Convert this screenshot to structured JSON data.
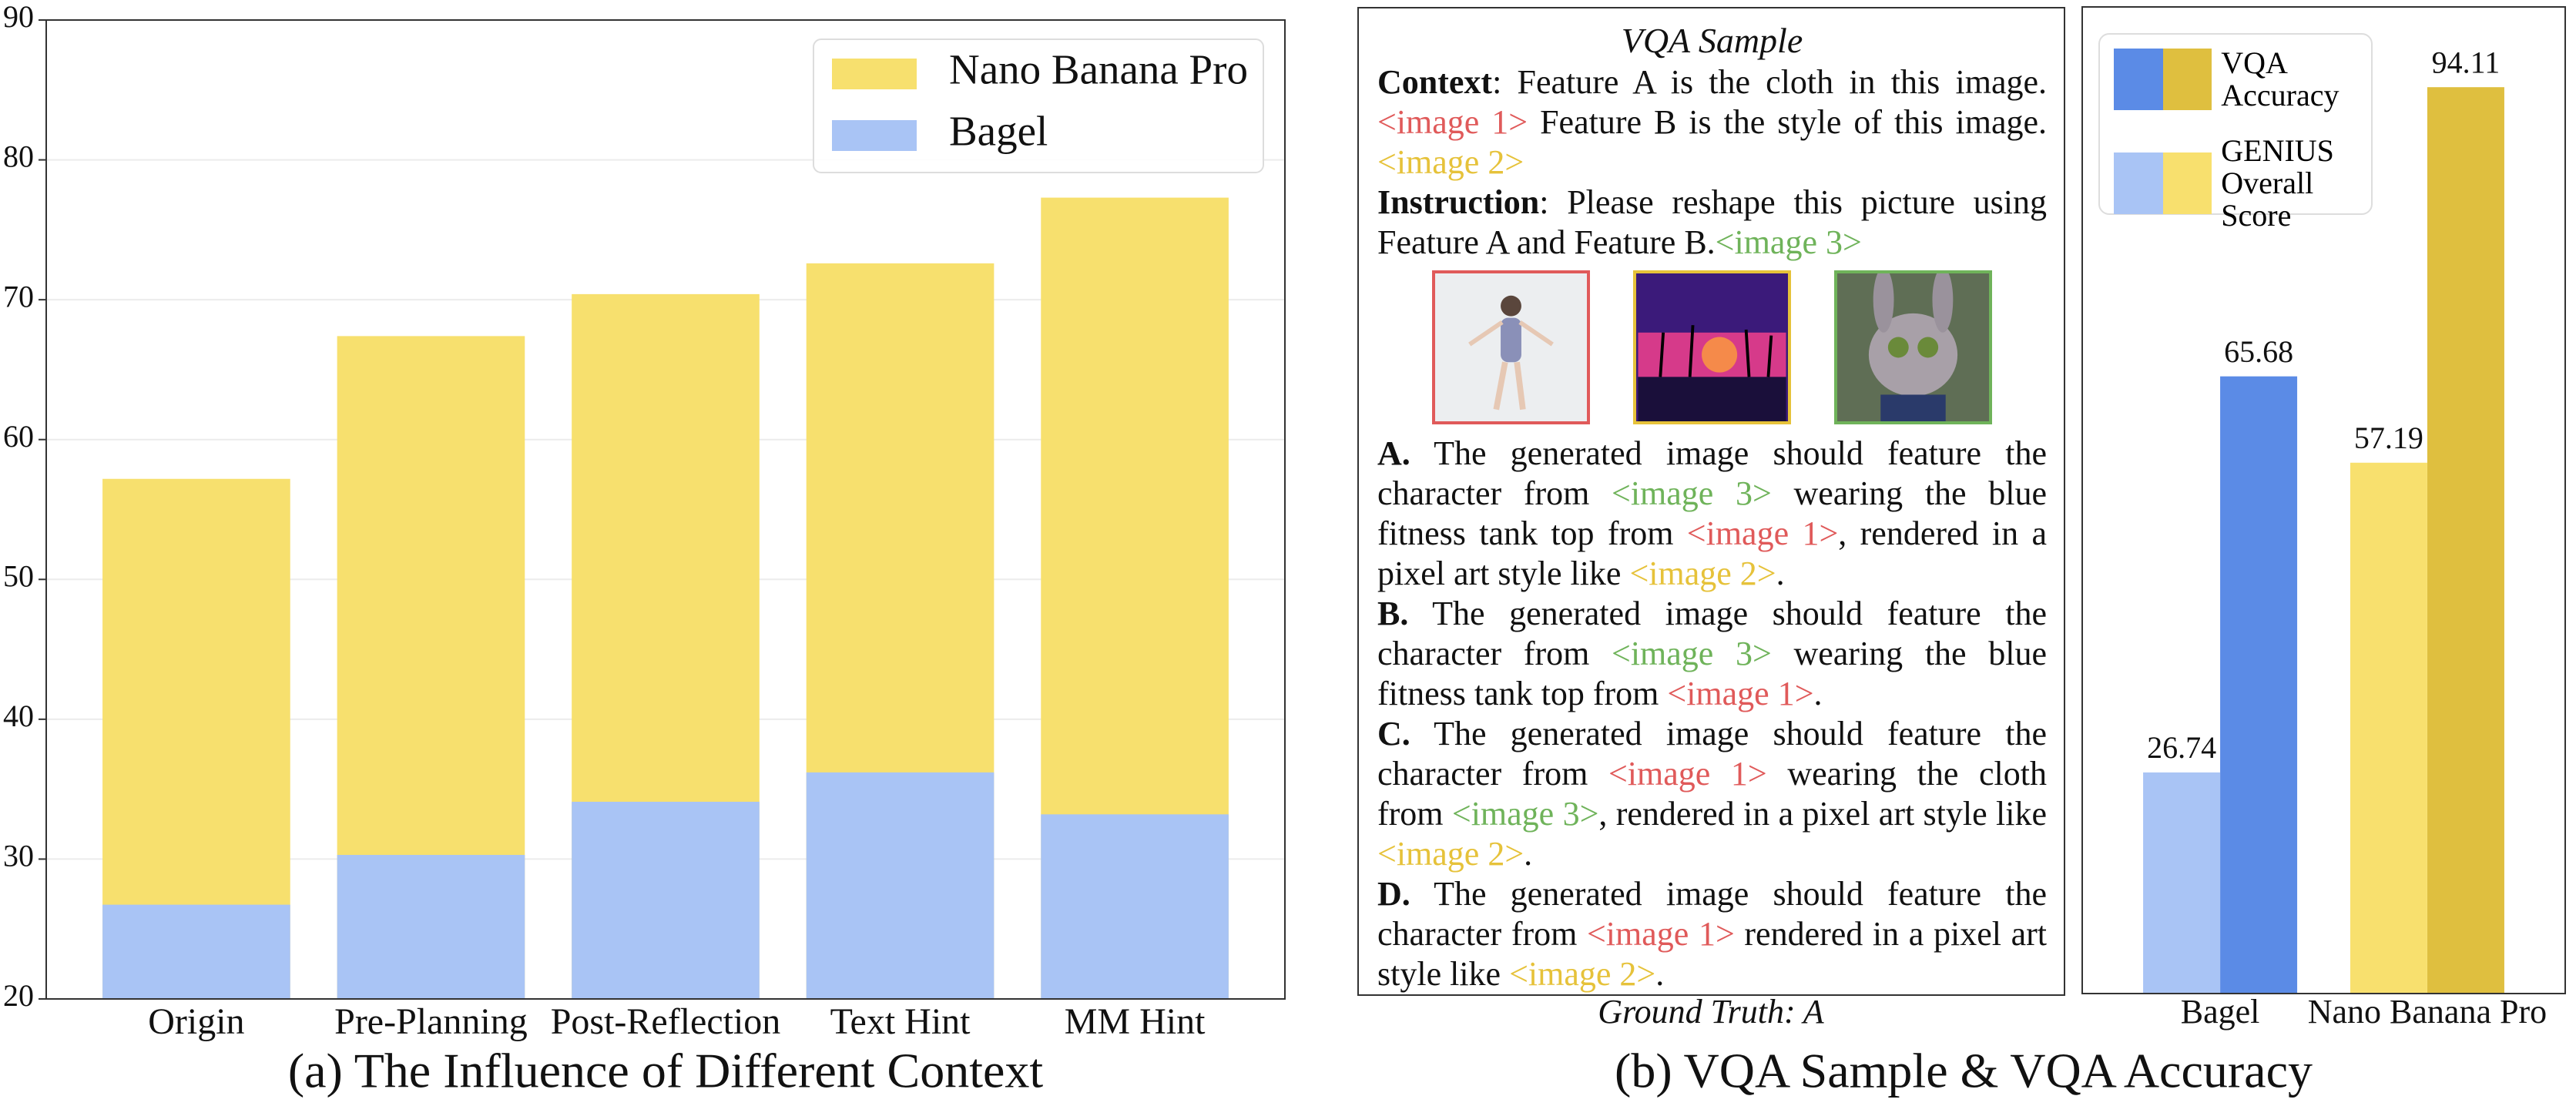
{
  "chart_data": [
    {
      "type": "bar",
      "title": "(a) The Influence of Different Context",
      "categories": [
        "Origin",
        "Pre-Planning",
        "Post-Reflection",
        "Text Hint",
        "MM Hint"
      ],
      "series": [
        {
          "name": "Nano Banana Pro",
          "color": "#f7e06e",
          "values": [
            57.19,
            67.4,
            70.4,
            72.6,
            77.3
          ]
        },
        {
          "name": "Bagel",
          "color": "#a9c4f5",
          "values": [
            26.74,
            30.3,
            34.1,
            36.2,
            33.2
          ]
        }
      ],
      "ylim": [
        20,
        90
      ],
      "yticks": [
        20,
        30,
        40,
        50,
        60,
        70,
        80,
        90
      ],
      "grid": true,
      "legend": "upper right"
    },
    {
      "type": "grouped_bar",
      "categories": [
        "Bagel",
        "Nano Banana Pro"
      ],
      "series": [
        {
          "name": "VQA Accuracy",
          "colors": [
            "#5b8be6",
            "#dfbf3f"
          ],
          "values": [
            65.68,
            94.11
          ]
        },
        {
          "name": "GENIUS Overall Score",
          "colors": [
            "#a9c4f5",
            "#f8e06e"
          ],
          "values": [
            26.74,
            57.19
          ]
        }
      ],
      "ylim": [
        5,
        102
      ],
      "grid": false,
      "legend": "upper left"
    }
  ],
  "vqa_sample": {
    "title": "VQA Sample",
    "context_label": "Context",
    "context": [
      {
        "text": ": Feature A is the cloth in this image. "
      },
      {
        "text": "<image 1>",
        "color": "#e05a5a"
      },
      {
        "text": " Feature B is the style of this image. "
      },
      {
        "text": "<image 2>",
        "color": "#e6c23a"
      }
    ],
    "instruction_label": "Instruction",
    "instruction": [
      {
        "text": ": Please reshape this picture using Feature A and Feature B."
      },
      {
        "text": "<image 3>",
        "color": "#6fb35a"
      }
    ],
    "options": [
      {
        "label": "A.",
        "segments": [
          {
            "text": " The generated image should feature the character from "
          },
          {
            "text": "<image 3>",
            "color": "#6fb35a"
          },
          {
            "text": " wearing the blue fitness tank top from "
          },
          {
            "text": "<image 1>",
            "color": "#e05a5a"
          },
          {
            "text": ", rendered in a pixel art style like "
          },
          {
            "text": "<image 2>",
            "color": "#e6c23a"
          },
          {
            "text": "."
          }
        ]
      },
      {
        "label": "B.",
        "segments": [
          {
            "text": " The generated image should feature the character from "
          },
          {
            "text": "<image 3>",
            "color": "#6fb35a"
          },
          {
            "text": " wearing the blue fitness tank top from "
          },
          {
            "text": "<image 1>",
            "color": "#e05a5a"
          },
          {
            "text": "."
          }
        ]
      },
      {
        "label": "C.",
        "segments": [
          {
            "text": " The generated image should feature the character from "
          },
          {
            "text": "<image 1>",
            "color": "#e05a5a"
          },
          {
            "text": " wearing the cloth from "
          },
          {
            "text": "<image 3>",
            "color": "#6fb35a"
          },
          {
            "text": ", rendered in a pixel art style like "
          },
          {
            "text": "<image 2>",
            "color": "#e6c23a"
          },
          {
            "text": "."
          }
        ]
      },
      {
        "label": "D.",
        "segments": [
          {
            "text": " The generated image should feature the character from "
          },
          {
            "text": "<image 1>",
            "color": "#e05a5a"
          },
          {
            "text": " rendered in a pixel art style like "
          },
          {
            "text": "<image 2>",
            "color": "#e6c23a"
          },
          {
            "text": "."
          }
        ]
      }
    ],
    "ground_truth": "Ground Truth: A"
  },
  "caption_b": "(b) VQA Sample & VQA Accuracy"
}
